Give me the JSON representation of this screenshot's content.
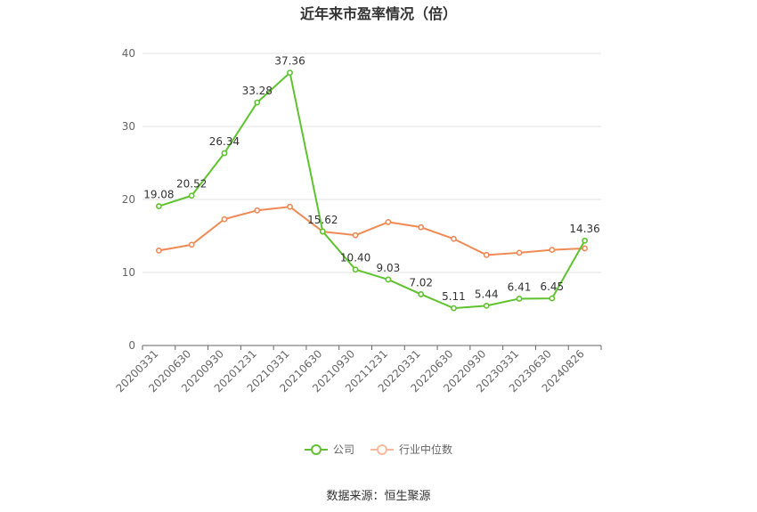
{
  "title": "近年来市盈率情况（倍）",
  "source": "数据来源：恒生聚源",
  "chart_data": {
    "type": "line",
    "title": "近年来市盈率情况（倍）",
    "categories": [
      "20200331",
      "20200630",
      "20200930",
      "20201231",
      "20210331",
      "20210630",
      "20210930",
      "20211231",
      "20220331",
      "20220630",
      "20220930",
      "20230331",
      "20230630",
      "20240826"
    ],
    "ylim": [
      0,
      40
    ],
    "yticks": [
      0,
      10,
      20,
      30,
      40
    ],
    "grid": true,
    "legend_position": "bottom",
    "series": [
      {
        "name": "公司",
        "color": "#5ec32e",
        "values": [
          19.08,
          20.52,
          26.34,
          33.28,
          37.36,
          15.62,
          10.4,
          9.03,
          7.02,
          5.11,
          5.44,
          6.41,
          6.45,
          14.36
        ],
        "labels": [
          "19.08",
          "20.52",
          "26.34",
          "33.28",
          "37.36",
          "15.62",
          "10.40",
          "9.03",
          "7.02",
          "5.11",
          "5.44",
          "6.41",
          "6.45",
          "14.36"
        ]
      },
      {
        "name": "行业中位数",
        "color": "#f08a55",
        "values": [
          13.0,
          13.8,
          17.3,
          18.5,
          19.0,
          15.6,
          15.1,
          16.9,
          16.2,
          14.6,
          12.4,
          12.7,
          13.1,
          13.3
        ]
      }
    ]
  }
}
